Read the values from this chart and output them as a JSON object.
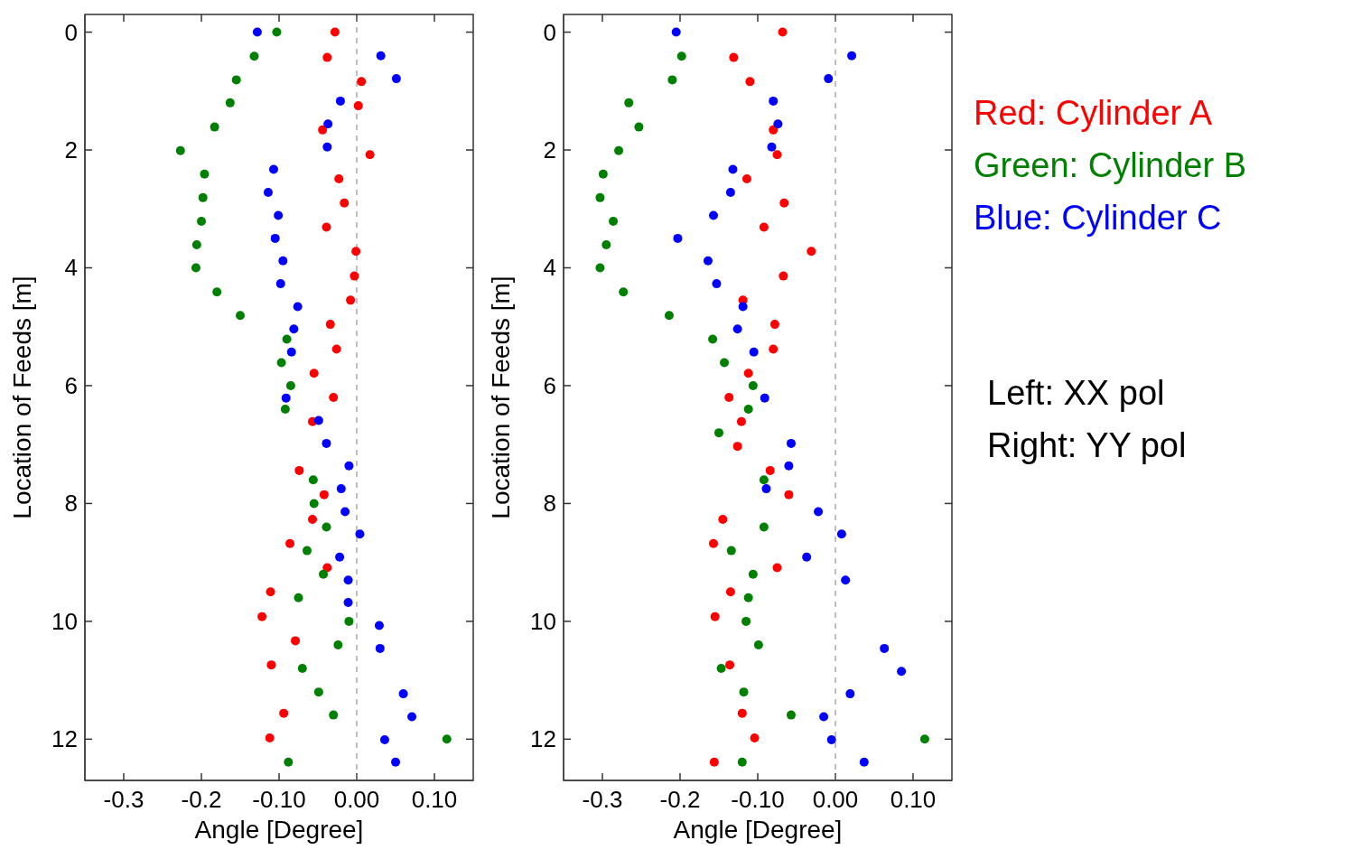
{
  "chart_data": [
    {
      "type": "scatter",
      "xlabel": "Angle [Degree]",
      "ylabel": "Location of Feeds [m]",
      "xlim": [
        -0.35,
        0.15
      ],
      "ylim": [
        12.7,
        -0.3
      ],
      "xticks": [
        {
          "value": -0.3,
          "label": "-0.3"
        },
        {
          "value": -0.2,
          "label": "-0.2"
        },
        {
          "value": -0.1,
          "label": "-0.10"
        },
        {
          "value": 0,
          "label": "0.00"
        },
        {
          "value": 0.1,
          "label": "0.10"
        }
      ],
      "yticks": [
        0,
        2,
        4,
        6,
        8,
        10,
        12
      ],
      "marker": "circle",
      "ref_lines": [
        {
          "axis": "x",
          "value": 0,
          "line_style": "dashed",
          "color": "#808080"
        }
      ],
      "series": [
        {
          "color": "#ff0000",
          "x": [
            -0.028,
            -0.038,
            0.006,
            0.002,
            -0.044,
            0.017,
            -0.023,
            -0.016,
            -0.039,
            -0.001,
            -0.003,
            -0.008,
            -0.034,
            -0.026,
            -0.055,
            -0.03,
            -0.057,
            -0.074,
            -0.042,
            -0.057,
            -0.086,
            -0.038,
            -0.111,
            -0.122,
            -0.079,
            -0.11,
            -0.094,
            -0.112
          ],
          "values": [
            0,
            0.43,
            0.84,
            1.25,
            1.66,
            2.08,
            2.49,
            2.9,
            3.31,
            3.72,
            4.14,
            4.55,
            4.96,
            5.38,
            5.79,
            6.2,
            6.61,
            7.44,
            7.85,
            8.27,
            8.68,
            9.09,
            9.5,
            9.92,
            10.33,
            10.74,
            11.56,
            11.98
          ]
        },
        {
          "color": "#008000",
          "x": [
            -0.103,
            -0.132,
            -0.155,
            -0.163,
            -0.183,
            -0.227,
            -0.196,
            -0.198,
            -0.2,
            -0.206,
            -0.207,
            -0.18,
            -0.15,
            -0.09,
            -0.097,
            -0.085,
            -0.092,
            -0.056,
            -0.055,
            -0.039,
            -0.064,
            -0.043,
            -0.075,
            -0.01,
            -0.024,
            -0.07,
            -0.049,
            -0.03,
            0.116,
            -0.088
          ],
          "values": [
            0,
            0.41,
            0.81,
            1.2,
            1.61,
            2.01,
            2.41,
            2.81,
            3.21,
            3.61,
            4,
            4.41,
            4.81,
            5.21,
            5.61,
            6,
            6.4,
            7.6,
            8,
            8.4,
            8.8,
            9.2,
            9.6,
            10,
            10.4,
            10.8,
            11.2,
            11.59,
            12,
            12.39
          ]
        },
        {
          "color": "#0000ff",
          "x": [
            -0.128,
            0.031,
            0.051,
            -0.021,
            -0.037,
            -0.038,
            -0.107,
            -0.114,
            -0.101,
            -0.105,
            -0.095,
            -0.098,
            -0.076,
            -0.081,
            -0.084,
            -0.091,
            -0.049,
            -0.039,
            -0.01,
            -0.02,
            -0.015,
            0.004,
            -0.022,
            -0.011,
            -0.011,
            0.029,
            0.03,
            0.06,
            0.071,
            0.036,
            0.05
          ],
          "values": [
            0,
            0.4,
            0.79,
            1.17,
            1.56,
            1.95,
            2.33,
            2.72,
            3.11,
            3.5,
            3.88,
            4.27,
            4.66,
            5.04,
            5.43,
            6.21,
            6.59,
            6.98,
            7.36,
            7.75,
            8.14,
            8.52,
            8.91,
            9.3,
            9.68,
            10.07,
            10.46,
            11.23,
            11.62,
            12.01,
            12.39
          ]
        }
      ]
    },
    {
      "type": "scatter",
      "xlabel": "Angle [Degree]",
      "ylabel": "Location of Feeds [m]",
      "xlim": [
        -0.35,
        0.15
      ],
      "ylim": [
        12.7,
        -0.3
      ],
      "xticks": [
        {
          "value": -0.3,
          "label": "-0.3"
        },
        {
          "value": -0.2,
          "label": "-0.2"
        },
        {
          "value": -0.1,
          "label": "-0.10"
        },
        {
          "value": 0,
          "label": "0.00"
        },
        {
          "value": 0.1,
          "label": "0.10"
        }
      ],
      "yticks": [
        0,
        2,
        4,
        6,
        8,
        10,
        12
      ],
      "marker": "circle",
      "ref_lines": [
        {
          "axis": "x",
          "value": 0,
          "line_style": "dashed",
          "color": "#808080"
        }
      ],
      "series": [
        {
          "color": "#ff0000",
          "x": [
            -0.068,
            -0.131,
            -0.11,
            -0.08,
            -0.075,
            -0.114,
            -0.066,
            -0.092,
            -0.031,
            -0.067,
            -0.119,
            -0.078,
            -0.08,
            -0.112,
            -0.137,
            -0.121,
            -0.126,
            -0.084,
            -0.06,
            -0.145,
            -0.157,
            -0.075,
            -0.135,
            -0.155,
            -0.136,
            -0.12,
            -0.104,
            -0.156
          ],
          "values": [
            0,
            0.43,
            0.84,
            1.66,
            2.08,
            2.49,
            2.9,
            3.31,
            3.72,
            4.14,
            4.55,
            4.96,
            5.38,
            5.79,
            6.2,
            6.61,
            7.03,
            7.44,
            7.85,
            8.27,
            8.68,
            9.09,
            9.5,
            9.92,
            10.74,
            11.56,
            11.98,
            12.39
          ]
        },
        {
          "color": "#008000",
          "x": [
            -0.198,
            -0.21,
            -0.266,
            -0.253,
            -0.279,
            -0.299,
            -0.303,
            -0.286,
            -0.295,
            -0.303,
            -0.273,
            -0.214,
            -0.158,
            -0.143,
            -0.106,
            -0.112,
            -0.15,
            -0.092,
            -0.092,
            -0.134,
            -0.106,
            -0.112,
            -0.115,
            -0.099,
            -0.147,
            -0.118,
            -0.057,
            0.115,
            -0.12
          ],
          "values": [
            0.41,
            0.81,
            1.2,
            1.61,
            2.01,
            2.41,
            2.81,
            3.21,
            3.61,
            4,
            4.41,
            4.81,
            5.21,
            5.61,
            6,
            6.4,
            6.8,
            7.6,
            8.4,
            8.8,
            9.2,
            9.6,
            10,
            10.4,
            10.8,
            11.2,
            11.59,
            12,
            12.39
          ]
        },
        {
          "color": "#0000ff",
          "x": [
            -0.205,
            0.021,
            -0.009,
            -0.08,
            -0.074,
            -0.082,
            -0.132,
            -0.135,
            -0.157,
            -0.203,
            -0.164,
            -0.153,
            -0.119,
            -0.126,
            -0.105,
            -0.091,
            -0.057,
            -0.06,
            -0.089,
            -0.022,
            0.008,
            -0.037,
            0.013,
            0.063,
            0.085,
            0.019,
            -0.015,
            -0.005,
            0.037
          ],
          "values": [
            0,
            0.4,
            0.79,
            1.17,
            1.56,
            1.95,
            2.33,
            2.72,
            3.11,
            3.5,
            3.88,
            4.27,
            4.66,
            5.04,
            5.43,
            6.21,
            6.98,
            7.36,
            7.75,
            8.14,
            8.52,
            8.91,
            9.3,
            10.46,
            10.85,
            11.23,
            11.62,
            12.01,
            12.39
          ]
        }
      ]
    },
    {
      "type": "other",
      "annotations": [
        "Red: Cylinder A",
        "Green: Cylinder B",
        "Blue: Cylinder C",
        "Left: XX pol",
        "Right: YY pol"
      ]
    }
  ]
}
